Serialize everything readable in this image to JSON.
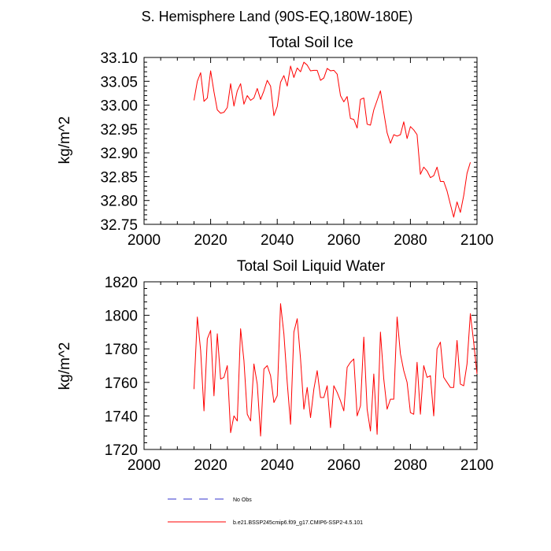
{
  "figure_title": "S. Hemisphere Land (90S-EQ,180W-180E)",
  "colors": {
    "model": "#ff0000",
    "obs": "#3333cc",
    "axis": "#000000"
  },
  "legend": {
    "obs_label": "No Obs",
    "model_label": "b.e21.BSSP245cmip6.f09_g17.CMIP6-SSP2-4.5.101"
  },
  "chart_data": [
    {
      "type": "line",
      "title": "Total Soil Ice",
      "xlabel": "",
      "ylabel": "kg/m^2",
      "xlim": [
        2000,
        2100
      ],
      "ylim": [
        32.75,
        33.1
      ],
      "xticks": [
        2000,
        2020,
        2040,
        2060,
        2080,
        2100
      ],
      "xtick_labels": [
        "2000",
        "2020",
        "2040",
        "2060",
        "2080",
        "2100"
      ],
      "yticks": [
        32.75,
        32.8,
        32.85,
        32.9,
        32.95,
        33.0,
        33.05,
        33.1
      ],
      "ytick_labels": [
        "32.75",
        "32.80",
        "32.85",
        "32.90",
        "32.95",
        "33.00",
        "33.05",
        "33.10"
      ],
      "series": [
        {
          "name": "b.e21.BSSP245cmip6.f09_g17.CMIP6-SSP2-4.5.101",
          "x_start": 2015,
          "x_step": 1,
          "values": [
            33.01,
            33.05,
            33.068,
            33.008,
            33.015,
            33.072,
            33.028,
            32.99,
            32.983,
            32.985,
            32.995,
            33.045,
            32.998,
            33.03,
            33.045,
            33.002,
            33.02,
            33.01,
            33.015,
            33.035,
            33.012,
            33.03,
            33.052,
            33.04,
            32.978,
            32.997,
            33.048,
            33.062,
            33.04,
            33.082,
            33.058,
            33.078,
            33.07,
            33.09,
            33.084,
            33.072,
            33.073,
            33.073,
            33.052,
            33.057,
            33.077,
            33.072,
            33.073,
            33.065,
            33.02,
            33.007,
            33.018,
            32.972,
            32.97,
            32.952,
            33.012,
            33.015,
            32.96,
            32.958,
            32.99,
            33.01,
            33.03,
            32.985,
            32.942,
            32.92,
            32.938,
            32.935,
            32.938,
            32.965,
            32.93,
            32.955,
            32.948,
            32.938,
            32.855,
            32.87,
            32.862,
            32.848,
            32.852,
            32.87,
            32.84,
            32.84,
            32.82,
            32.792,
            32.765,
            32.797,
            32.775,
            32.81,
            32.857,
            32.88
          ]
        }
      ]
    },
    {
      "type": "line",
      "title": "Total Soil Liquid Water",
      "xlabel": "",
      "ylabel": "kg/m^2",
      "xlim": [
        2000,
        2100
      ],
      "ylim": [
        1720,
        1820
      ],
      "xticks": [
        2000,
        2020,
        2040,
        2060,
        2080,
        2100
      ],
      "xtick_labels": [
        "2000",
        "2020",
        "2040",
        "2060",
        "2080",
        "2100"
      ],
      "yticks": [
        1720,
        1740,
        1760,
        1780,
        1800,
        1820
      ],
      "ytick_labels": [
        "1720",
        "1740",
        "1760",
        "1780",
        "1800",
        "1820"
      ],
      "series": [
        {
          "name": "b.e21.BSSP245cmip6.f09_g17.CMIP6-SSP2-4.5.101",
          "x_start": 2015,
          "x_step": 1,
          "values": [
            1756,
            1799,
            1779,
            1743,
            1786,
            1791,
            1752,
            1789,
            1762,
            1763,
            1770,
            1730,
            1740,
            1737,
            1792,
            1773,
            1741,
            1737,
            1771,
            1759,
            1728,
            1768,
            1770,
            1764,
            1748,
            1752,
            1807,
            1789,
            1760,
            1735,
            1790,
            1798,
            1774,
            1744,
            1757,
            1739,
            1756,
            1767,
            1751,
            1751,
            1758,
            1733,
            1758,
            1754,
            1749,
            1743,
            1769,
            1772,
            1774,
            1740,
            1746,
            1787,
            1744,
            1731,
            1765,
            1729,
            1790,
            1762,
            1744,
            1750,
            1750,
            1799,
            1777,
            1767,
            1760,
            1742,
            1741,
            1772,
            1741,
            1770,
            1763,
            1764,
            1740,
            1780,
            1784,
            1763,
            1760,
            1757,
            1757,
            1785,
            1759,
            1758,
            1771,
            1801,
            1784,
            1765
          ]
        }
      ]
    }
  ]
}
